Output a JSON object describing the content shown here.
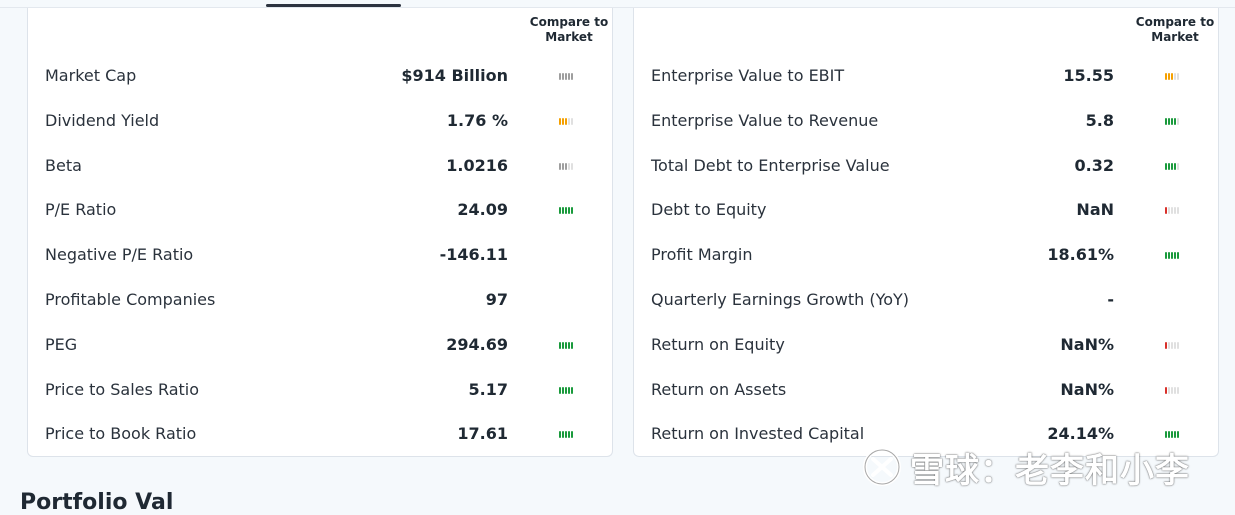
{
  "compare_header": "Compare to Market",
  "left_panel": {
    "rows": [
      {
        "label": "Market Cap",
        "value": "$914 Billion",
        "meter": {
          "color": "#9e9e9e",
          "level": 5
        }
      },
      {
        "label": "Dividend Yield",
        "value": "1.76 %",
        "meter": {
          "color": "#f5a000",
          "level": 3
        }
      },
      {
        "label": "Beta",
        "value": "1.0216",
        "meter": {
          "color": "#9e9e9e",
          "level": 3
        }
      },
      {
        "label": "P/E Ratio",
        "value": "24.09",
        "meter": {
          "color": "#1a9a3c",
          "level": 5
        }
      },
      {
        "label": "Negative P/E Ratio",
        "value": "-146.11",
        "meter": null
      },
      {
        "label": "Profitable Companies",
        "value": "97",
        "meter": null
      },
      {
        "label": "PEG",
        "value": "294.69",
        "meter": {
          "color": "#1a9a3c",
          "level": 5
        }
      },
      {
        "label": "Price to Sales Ratio",
        "value": "5.17",
        "meter": {
          "color": "#1a9a3c",
          "level": 5
        }
      },
      {
        "label": "Price to Book Ratio",
        "value": "17.61",
        "meter": {
          "color": "#1a9a3c",
          "level": 5
        }
      }
    ]
  },
  "right_panel": {
    "rows": [
      {
        "label": "Enterprise Value to EBIT",
        "value": "15.55",
        "meter": {
          "color": "#f5a000",
          "level": 3
        }
      },
      {
        "label": "Enterprise Value to Revenue",
        "value": "5.8",
        "meter": {
          "color": "#1a9a3c",
          "level": 4
        }
      },
      {
        "label": "Total Debt to Enterprise Value",
        "value": "0.32",
        "meter": {
          "color": "#1a9a3c",
          "level": 4
        }
      },
      {
        "label": "Debt to Equity",
        "value": "NaN",
        "meter": {
          "color": "#d9302a",
          "level": 1
        }
      },
      {
        "label": "Profit Margin",
        "value": "18.61%",
        "meter": {
          "color": "#1a9a3c",
          "level": 5
        }
      },
      {
        "label": "Quarterly Earnings Growth (YoY)",
        "value": "-",
        "meter": null
      },
      {
        "label": "Return on Equity",
        "value": "NaN%",
        "meter": {
          "color": "#d9302a",
          "level": 1
        }
      },
      {
        "label": "Return on Assets",
        "value": "NaN%",
        "meter": {
          "color": "#d9302a",
          "level": 1
        }
      },
      {
        "label": "Return on Invested Capital",
        "value": "24.14%",
        "meter": {
          "color": "#1a9a3c",
          "level": 5
        }
      }
    ]
  },
  "meter_empty_color": "#e0e0e0",
  "meter_segments": 5,
  "bottom_title": "Portfolio Val",
  "watermark": {
    "text": "雪球：老李和小李",
    "icon": "xueqiu-logo-icon"
  }
}
